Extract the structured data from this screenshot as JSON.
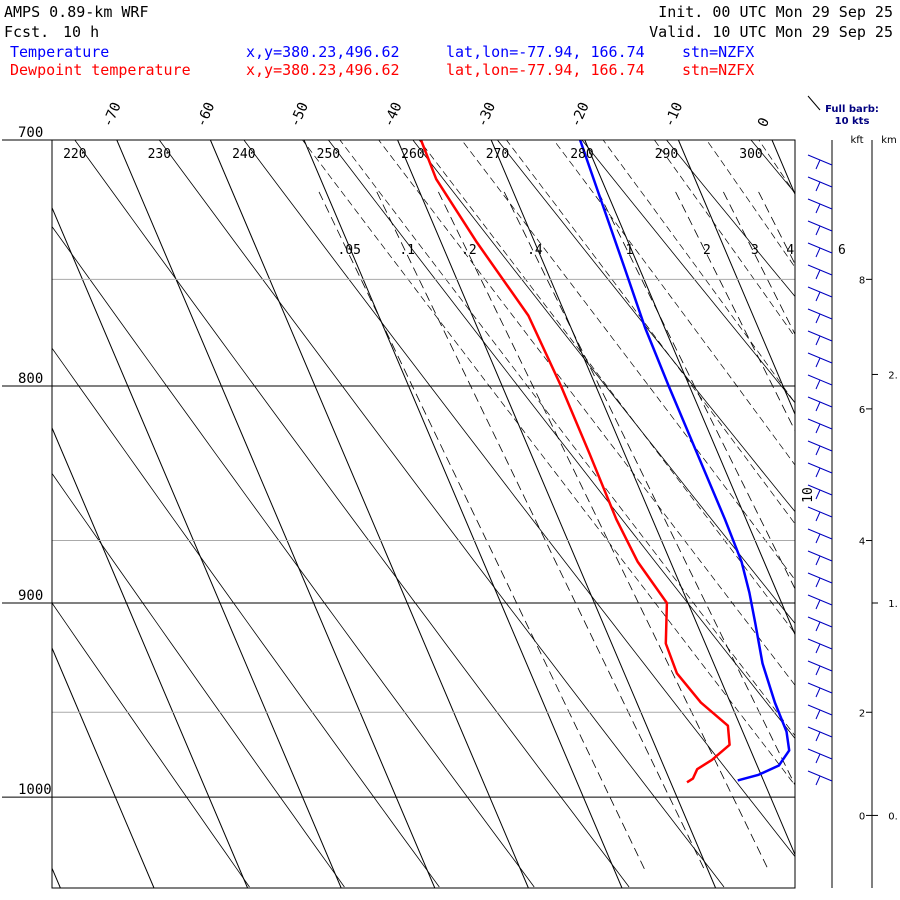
{
  "header": {
    "model": "AMPS 0.89-km WRF",
    "fcst_label": "Fcst.",
    "fcst_value": "10 h",
    "init": "Init. 00 UTC Mon 29 Sep 25",
    "valid": "Valid. 10 UTC Mon 29 Sep 25"
  },
  "legend": [
    {
      "name": "Temperature",
      "color": "#0000ff",
      "xy": "x,y=380.23,496.62",
      "latlon": "lat,lon=-77.94, 166.74",
      "stn": "stn=NZFX"
    },
    {
      "name": "Dewpoint temperature",
      "color": "#ff0000",
      "xy": "x,y=380.23,496.62",
      "latlon": "lat,lon=-77.94, 166.74",
      "stn": "stn=NZFX"
    }
  ],
  "barb_legend": {
    "line1": "Full barb:",
    "line2": "10 kts"
  },
  "height_axis": {
    "kft_label": "kft",
    "km_label": "km"
  },
  "chart_data": {
    "type": "line",
    "subtype": "skew-t",
    "pressure_ticks": [
      700,
      800,
      900,
      1000
    ],
    "pressure_range": [
      700,
      1040
    ],
    "temperature_ticks": [
      -70,
      -60,
      -50,
      -40,
      -30,
      -20,
      -10,
      0
    ],
    "theta_labels": [
      220,
      230,
      240,
      250,
      260,
      270,
      280,
      290,
      300
    ],
    "mixing_ratio_labels": [
      ".05",
      ".1",
      ".2",
      ".4",
      "1",
      "2",
      "3",
      "4",
      "6"
    ],
    "kft_ticks": [
      {
        "label": "0",
        "p": 1010
      },
      {
        "label": "2",
        "p": 955
      },
      {
        "label": "4",
        "p": 870
      },
      {
        "label": "6",
        "p": 810
      },
      {
        "label": "8",
        "p": 755
      }
    ],
    "km_ticks": [
      {
        "label": "0.",
        "p": 1010
      },
      {
        "label": "1.",
        "p": 900
      },
      {
        "label": "2.",
        "p": 795
      }
    ],
    "barb_label": "10",
    "series": [
      {
        "name": "Temperature",
        "color": "#0000ff",
        "points": [
          [
            700,
            -20.5
          ],
          [
            720,
            -21.0
          ],
          [
            750,
            -21.7
          ],
          [
            775,
            -22.3
          ],
          [
            800,
            -22.5
          ],
          [
            830,
            -22.6
          ],
          [
            860,
            -22.7
          ],
          [
            880,
            -22.9
          ],
          [
            895,
            -23.5
          ],
          [
            910,
            -24.3
          ],
          [
            930,
            -25.4
          ],
          [
            950,
            -25.9
          ],
          [
            965,
            -26.0
          ],
          [
            975,
            -26.6
          ],
          [
            983,
            -28.4
          ],
          [
            988,
            -31.0
          ],
          [
            991,
            -33.5
          ]
        ]
      },
      {
        "name": "Dewpoint temperature",
        "color": "#ff0000",
        "points": [
          [
            700,
            -37.5
          ],
          [
            715,
            -37.7
          ],
          [
            740,
            -36.3
          ],
          [
            770,
            -34.2
          ],
          [
            800,
            -34.0
          ],
          [
            830,
            -34.1
          ],
          [
            860,
            -34.3
          ],
          [
            880,
            -34.0
          ],
          [
            900,
            -32.8
          ],
          [
            920,
            -34.8
          ],
          [
            935,
            -35.0
          ],
          [
            950,
            -33.8
          ],
          [
            962,
            -32.0
          ],
          [
            972,
            -32.7
          ],
          [
            980,
            -35.3
          ],
          [
            985,
            -37.3
          ],
          [
            990,
            -38.2
          ],
          [
            992,
            -39.0
          ]
        ]
      }
    ]
  }
}
